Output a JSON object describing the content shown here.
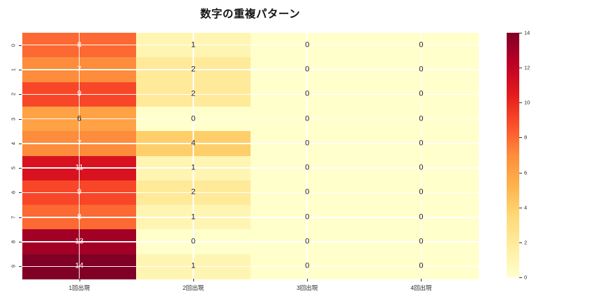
{
  "figure": {
    "background": "#ffffff"
  },
  "chart_data": {
    "type": "heatmap",
    "title": "数字の重複パターン",
    "row_labels": [
      "0",
      "1",
      "2",
      "3",
      "4",
      "5",
      "6",
      "7",
      "8",
      "9"
    ],
    "col_labels": [
      "1回出現",
      "2回出現",
      "3回出現",
      "4回出現"
    ],
    "values": [
      [
        8,
        1,
        0,
        0
      ],
      [
        7,
        2,
        0,
        0
      ],
      [
        9,
        2,
        0,
        0
      ],
      [
        6,
        0,
        0,
        0
      ],
      [
        7,
        4,
        0,
        0
      ],
      [
        11,
        1,
        0,
        0
      ],
      [
        9,
        2,
        0,
        0
      ],
      [
        8,
        1,
        0,
        0
      ],
      [
        13,
        0,
        0,
        0
      ],
      [
        14,
        1,
        0,
        0
      ]
    ],
    "vmin": 0,
    "vmax": 14,
    "colormap_name": "YlOrRd",
    "colormap_stops": [
      "#ffffcc",
      "#ffeda0",
      "#fed976",
      "#feb24c",
      "#fd8d3c",
      "#fc4e2a",
      "#e31a1c",
      "#bd0026",
      "#800026"
    ],
    "colorbar_ticks": [
      0,
      2,
      4,
      6,
      8,
      10,
      12,
      14
    ],
    "grid": true,
    "gridline_color": "#ffffff",
    "annotation_dark_color": "#1a1a1a",
    "annotation_light_color": "#ffffff",
    "annotation_white_threshold": 7,
    "legend_position": "right-colorbar"
  }
}
